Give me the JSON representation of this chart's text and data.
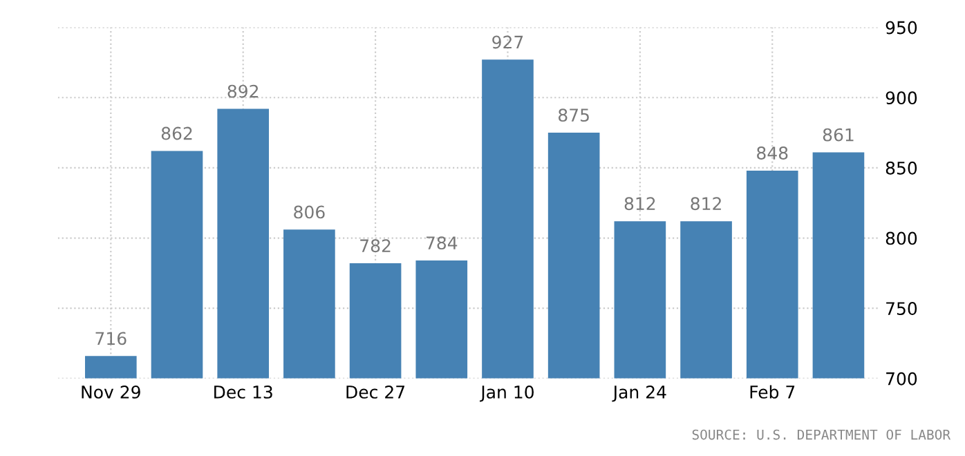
{
  "chart_data": {
    "type": "bar",
    "categories": [
      "Nov 29",
      null,
      "Dec 13",
      null,
      "Dec 27",
      null,
      "Jan 10",
      null,
      "Jan 24",
      null,
      "Feb 7",
      null
    ],
    "values": [
      716,
      862,
      892,
      806,
      782,
      784,
      927,
      875,
      812,
      812,
      848,
      861
    ],
    "color": "#4682b4",
    "ylim": [
      700,
      950
    ],
    "yticks": [
      700,
      750,
      800,
      850,
      900,
      950
    ],
    "grid": true,
    "data_labels": true,
    "annotations": [
      "SOURCE: U.S. DEPARTMENT OF LABOR"
    ]
  }
}
